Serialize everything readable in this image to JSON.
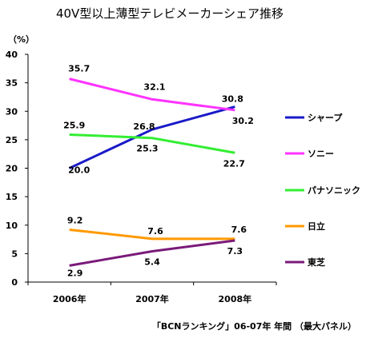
{
  "chart_data": {
    "type": "line",
    "title": "40V型以上薄型テレビメーカーシェア推移",
    "ylabel": "（%）",
    "xlabel": "",
    "categories": [
      "2006年",
      "2007年",
      "2008年"
    ],
    "ylim": [
      0,
      40
    ],
    "yticks": [
      0,
      5,
      10,
      15,
      20,
      25,
      30,
      35,
      40
    ],
    "grid": false,
    "legend_position": "right",
    "series": [
      {
        "name": "シャープ",
        "color": "#1a1ac8",
        "values": [
          20.0,
          26.8,
          30.8
        ],
        "labels": [
          "20.0",
          "26.8",
          "30.8"
        ]
      },
      {
        "name": "ソニー",
        "color": "#ff33ff",
        "values": [
          35.7,
          32.1,
          30.2
        ],
        "labels": [
          "35.7",
          "32.1",
          "30.2"
        ]
      },
      {
        "name": "パナソニック",
        "color": "#33ee33",
        "values": [
          25.9,
          25.3,
          22.7
        ],
        "labels": [
          "25.9",
          "25.3",
          "22.7"
        ]
      },
      {
        "name": "日立",
        "color": "#ff9900",
        "values": [
          9.2,
          7.6,
          7.6
        ],
        "labels": [
          "9.2",
          "7.6",
          "7.6"
        ]
      },
      {
        "name": "東芝",
        "color": "#7a1a7a",
        "values": [
          2.9,
          5.4,
          7.3
        ],
        "labels": [
          "2.9",
          "5.4",
          "7.3"
        ]
      }
    ],
    "source": "「BCNランキング」06-07年 年間 （最大パネル）"
  }
}
